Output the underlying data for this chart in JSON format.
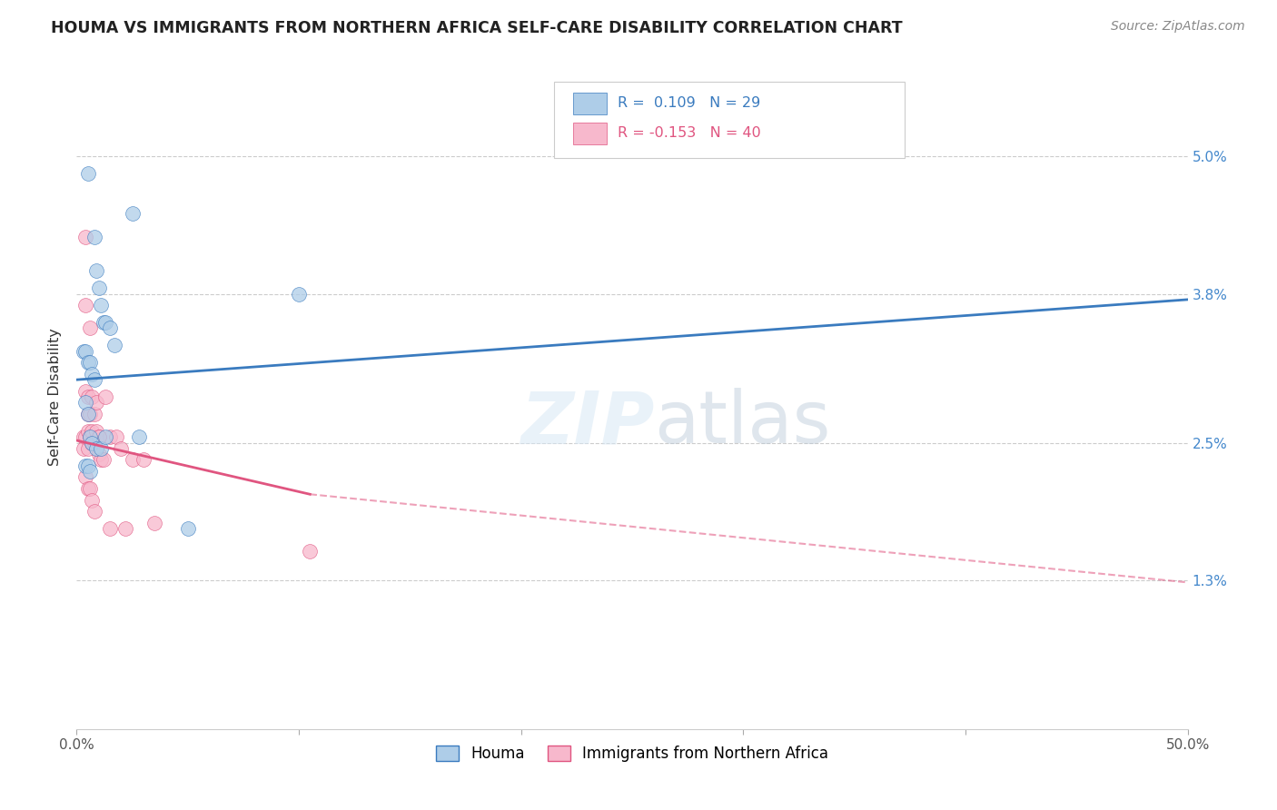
{
  "title": "HOUMA VS IMMIGRANTS FROM NORTHERN AFRICA SELF-CARE DISABILITY CORRELATION CHART",
  "source": "Source: ZipAtlas.com",
  "ylabel": "Self-Care Disability",
  "ytick_labels": [
    "1.3%",
    "2.5%",
    "3.8%",
    "5.0%"
  ],
  "ytick_values": [
    1.3,
    2.5,
    3.8,
    5.0
  ],
  "xlim": [
    0.0,
    50.0
  ],
  "ylim": [
    0.0,
    5.8
  ],
  "legend_label1": "Houma",
  "legend_label2": "Immigrants from Northern Africa",
  "R1": "0.109",
  "N1": "29",
  "R2": "-0.153",
  "N2": "40",
  "color_blue": "#aecde8",
  "color_pink": "#f7b8cc",
  "line_color_blue": "#3a7bbf",
  "line_color_pink": "#e05580",
  "houma_x": [
    0.5,
    2.5,
    0.8,
    0.9,
    1.0,
    1.1,
    1.2,
    1.3,
    0.3,
    0.4,
    0.5,
    0.6,
    0.7,
    0.8,
    1.5,
    1.7,
    0.4,
    0.5,
    0.6,
    0.7,
    0.9,
    1.1,
    1.3,
    0.4,
    0.5,
    0.6,
    2.8,
    5.0,
    10.0
  ],
  "houma_y": [
    4.85,
    4.5,
    4.3,
    4.0,
    3.85,
    3.7,
    3.55,
    3.55,
    3.3,
    3.3,
    3.2,
    3.2,
    3.1,
    3.05,
    3.5,
    3.35,
    2.85,
    2.75,
    2.55,
    2.5,
    2.45,
    2.45,
    2.55,
    2.3,
    2.3,
    2.25,
    2.55,
    1.75,
    3.8
  ],
  "nafr_x": [
    0.3,
    0.3,
    0.4,
    0.4,
    0.4,
    0.4,
    0.5,
    0.5,
    0.5,
    0.5,
    0.6,
    0.6,
    0.6,
    0.7,
    0.7,
    0.7,
    0.8,
    0.8,
    0.9,
    0.9,
    1.0,
    1.0,
    1.1,
    1.2,
    1.3,
    1.5,
    1.8,
    2.0,
    2.5,
    3.0,
    3.5,
    0.4,
    0.5,
    0.6,
    0.7,
    0.8,
    1.0,
    1.5,
    2.2,
    10.5
  ],
  "nafr_y": [
    2.55,
    2.45,
    4.3,
    3.7,
    2.95,
    2.55,
    2.9,
    2.75,
    2.6,
    2.45,
    3.5,
    2.75,
    2.55,
    2.9,
    2.6,
    2.5,
    2.75,
    2.5,
    2.85,
    2.6,
    2.55,
    2.4,
    2.35,
    2.35,
    2.9,
    2.55,
    2.55,
    2.45,
    2.35,
    2.35,
    1.8,
    2.2,
    2.1,
    2.1,
    2.0,
    1.9,
    2.55,
    1.75,
    1.75,
    1.55
  ],
  "blue_line_x0": 0.0,
  "blue_line_x1": 50.0,
  "blue_line_y0": 3.05,
  "blue_line_y1": 3.75,
  "pink_solid_x0": 0.0,
  "pink_solid_x1": 10.5,
  "pink_solid_y0": 2.52,
  "pink_solid_y1": 2.05,
  "pink_dash_x0": 10.5,
  "pink_dash_x1": 50.0,
  "pink_dash_y0": 2.05,
  "pink_dash_y1": 1.28
}
